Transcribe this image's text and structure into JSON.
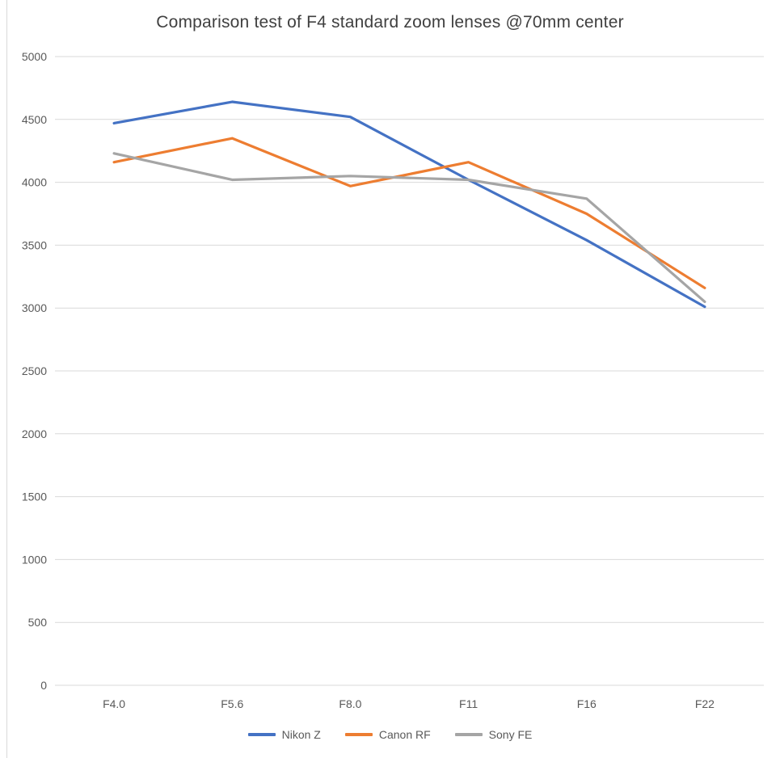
{
  "chart_data": {
    "type": "line",
    "title": "Comparison test of F4 standard zoom lenses @70mm center",
    "categories": [
      "F4.0",
      "F5.6",
      "F8.0",
      "F11",
      "F16",
      "F22"
    ],
    "series": [
      {
        "name": "Nikon Z",
        "color": "#4472C4",
        "values": [
          4470,
          4640,
          4520,
          4020,
          3540,
          3010
        ]
      },
      {
        "name": "Canon RF",
        "color": "#ED7D31",
        "values": [
          4160,
          4350,
          3970,
          4160,
          3750,
          3160
        ]
      },
      {
        "name": "Sony FE",
        "color": "#A5A5A5",
        "values": [
          4230,
          4020,
          4050,
          4020,
          3870,
          3050
        ]
      }
    ],
    "xlabel": "",
    "ylabel": "",
    "ylim": [
      0,
      5000
    ],
    "yticks": [
      0,
      500,
      1000,
      1500,
      2000,
      2500,
      3000,
      3500,
      4000,
      4500,
      5000
    ],
    "grid": true,
    "legend_position": "bottom",
    "colors": {
      "gridline": "#D9D9D9",
      "axis_text": "#595959",
      "title_text": "#404040"
    }
  }
}
